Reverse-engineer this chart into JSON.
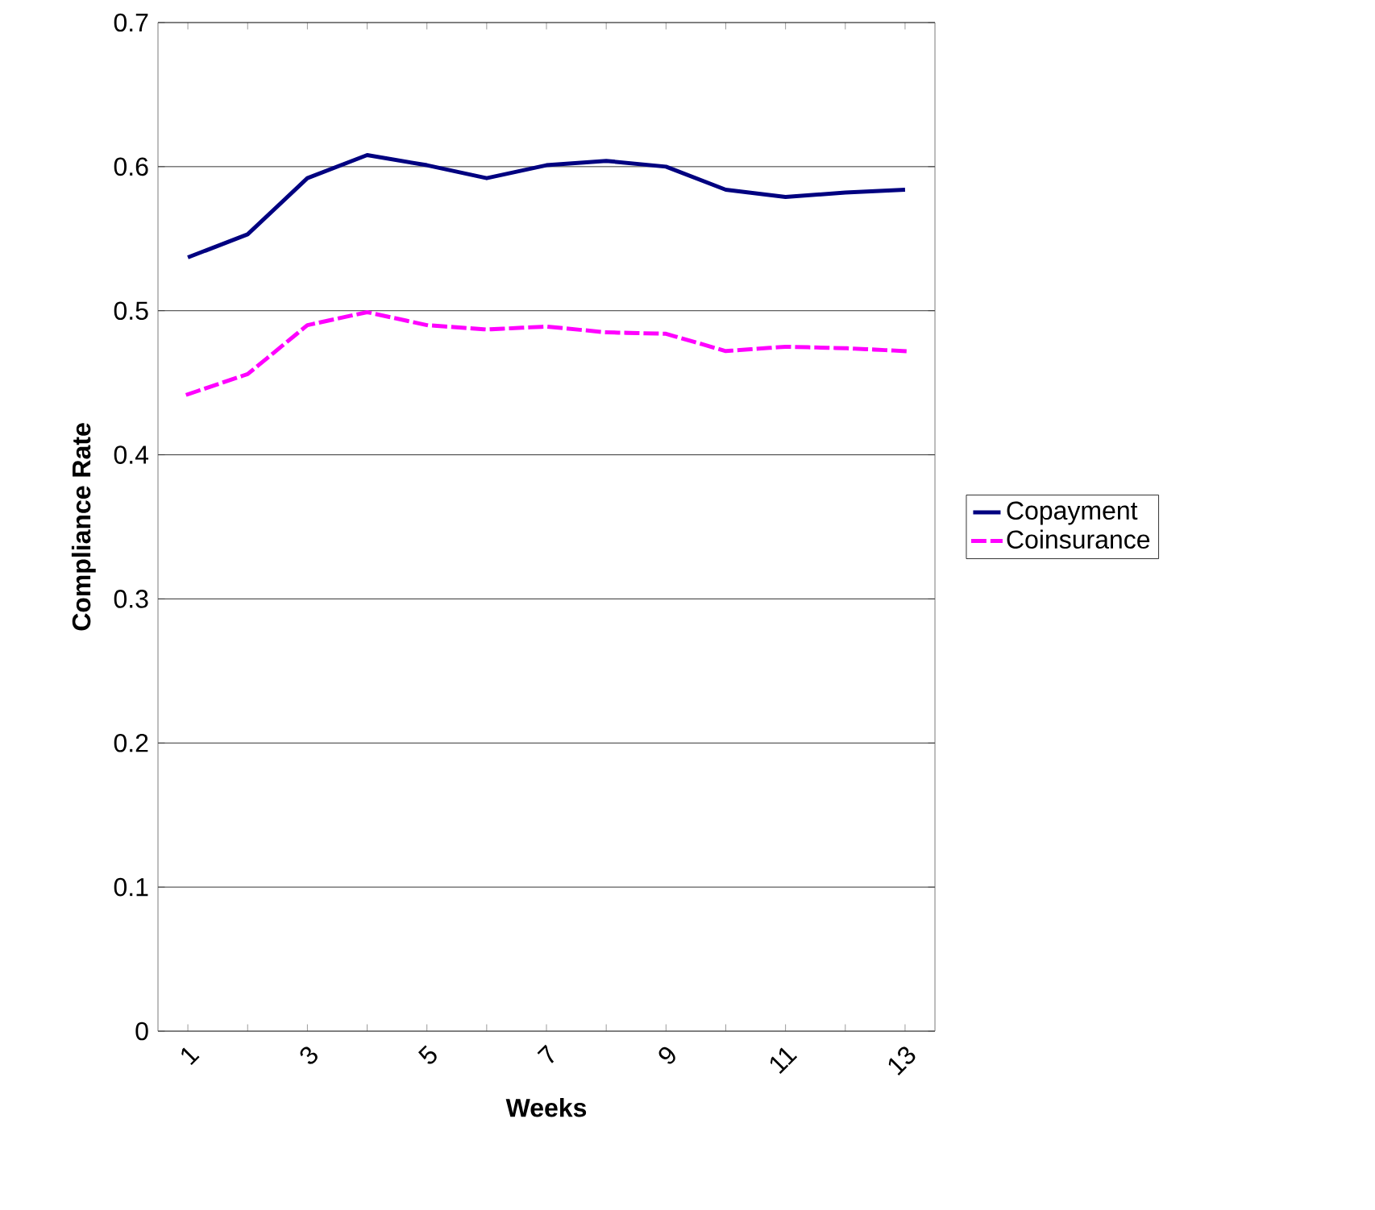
{
  "chart_data": {
    "type": "line",
    "xlabel": "Weeks",
    "ylabel": "Compliance Rate",
    "categories": [
      "1",
      null,
      "3",
      null,
      "5",
      null,
      "7",
      null,
      "9",
      null,
      "11",
      null,
      "13"
    ],
    "series": [
      {
        "name": "Copayment",
        "color": "#000080",
        "line_style": "solid",
        "values": [
          0.537,
          0.553,
          0.592,
          0.608,
          0.601,
          0.592,
          0.601,
          0.604,
          0.6,
          0.584,
          0.579,
          0.582,
          0.584
        ]
      },
      {
        "name": "Coinsurance",
        "color": "#ff00ff",
        "line_style": "dashed",
        "values": [
          0.442,
          0.456,
          0.49,
          0.499,
          0.49,
          0.487,
          0.489,
          0.485,
          0.484,
          0.472,
          0.475,
          0.474,
          0.472
        ]
      }
    ],
    "ylim": [
      0,
      0.7
    ],
    "yticks": [
      0,
      0.1,
      0.2,
      0.3,
      0.4,
      0.5,
      0.6,
      0.7
    ],
    "grid": "y",
    "legend": "right",
    "marker": "none"
  }
}
